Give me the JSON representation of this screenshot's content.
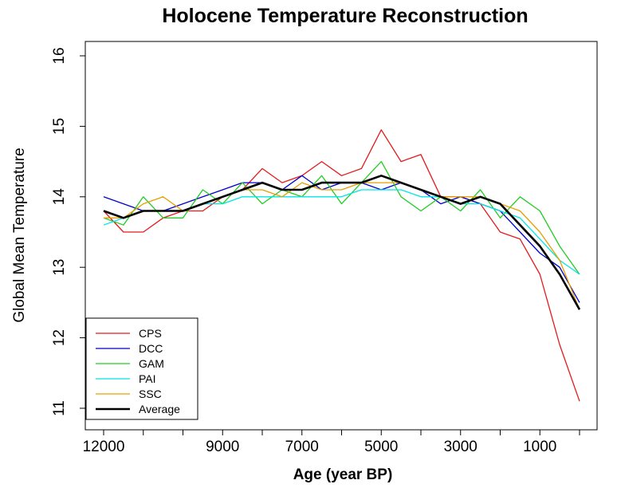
{
  "chart_data": {
    "type": "line",
    "title": "Holocene Temperature Reconstruction",
    "xlabel": "Age (year BP)",
    "ylabel": "Global Mean Temperature",
    "xlim": [
      12000,
      0
    ],
    "ylim": [
      11,
      16
    ],
    "x_ticks": [
      12000,
      11000,
      10000,
      9000,
      8000,
      7000,
      6000,
      5000,
      4000,
      3000,
      2000,
      1000,
      0
    ],
    "x_tick_labels": [
      "12000",
      "",
      "",
      "9000",
      "",
      "7000",
      "",
      "5000",
      "",
      "3000",
      "",
      "1000",
      ""
    ],
    "y_ticks": [
      11,
      12,
      13,
      14,
      15,
      16
    ],
    "y_tick_labels": [
      "11",
      "12",
      "13",
      "14",
      "15",
      "16"
    ],
    "grid": false,
    "legend_position": "bottom-left",
    "x": [
      12000,
      11500,
      11000,
      10500,
      10000,
      9500,
      9000,
      8500,
      8000,
      7500,
      7000,
      6500,
      6000,
      5500,
      5000,
      4500,
      4000,
      3500,
      3000,
      2500,
      2000,
      1500,
      1000,
      500,
      0
    ],
    "series": [
      {
        "name": "CPS",
        "color": "#e41a1c",
        "values": [
          13.8,
          13.5,
          13.5,
          13.7,
          13.8,
          13.8,
          14.0,
          14.1,
          14.4,
          14.2,
          14.3,
          14.5,
          14.3,
          14.4,
          14.95,
          14.5,
          14.6,
          14.0,
          14.0,
          13.9,
          13.5,
          13.4,
          12.9,
          11.9,
          11.1
        ]
      },
      {
        "name": "DCC",
        "color": "#0000cc",
        "values": [
          14.0,
          13.9,
          13.8,
          13.8,
          13.9,
          14.0,
          14.1,
          14.2,
          14.2,
          14.1,
          14.3,
          14.1,
          14.2,
          14.2,
          14.1,
          14.2,
          14.1,
          13.9,
          14.0,
          13.9,
          13.8,
          13.5,
          13.2,
          13.0,
          12.5
        ]
      },
      {
        "name": "GAM",
        "color": "#22cc22",
        "values": [
          13.7,
          13.6,
          14.0,
          13.7,
          13.7,
          14.1,
          13.9,
          14.2,
          13.9,
          14.1,
          14.0,
          14.3,
          13.9,
          14.2,
          14.5,
          14.0,
          13.8,
          14.0,
          13.8,
          14.1,
          13.7,
          14.0,
          13.8,
          13.3,
          12.9
        ]
      },
      {
        "name": "PAI",
        "color": "#00e5e5",
        "values": [
          13.6,
          13.7,
          13.8,
          13.8,
          13.8,
          13.9,
          13.9,
          14.0,
          14.0,
          14.0,
          14.0,
          14.0,
          14.0,
          14.1,
          14.1,
          14.1,
          14.0,
          14.0,
          13.9,
          13.9,
          13.8,
          13.7,
          13.4,
          13.1,
          12.9
        ]
      },
      {
        "name": "SSC",
        "color": "#e69f00",
        "values": [
          13.7,
          13.7,
          13.9,
          14.0,
          13.8,
          13.9,
          14.0,
          14.1,
          14.1,
          14.0,
          14.2,
          14.1,
          14.1,
          14.2,
          14.2,
          14.2,
          14.1,
          14.0,
          14.0,
          14.0,
          13.9,
          13.8,
          13.5,
          13.1,
          12.4
        ]
      },
      {
        "name": "Average",
        "color": "#000000",
        "values": [
          13.8,
          13.7,
          13.8,
          13.8,
          13.8,
          13.9,
          14.0,
          14.1,
          14.2,
          14.1,
          14.1,
          14.2,
          14.2,
          14.2,
          14.3,
          14.2,
          14.1,
          14.0,
          13.9,
          14.0,
          13.9,
          13.6,
          13.3,
          12.9,
          12.4
        ]
      }
    ]
  }
}
